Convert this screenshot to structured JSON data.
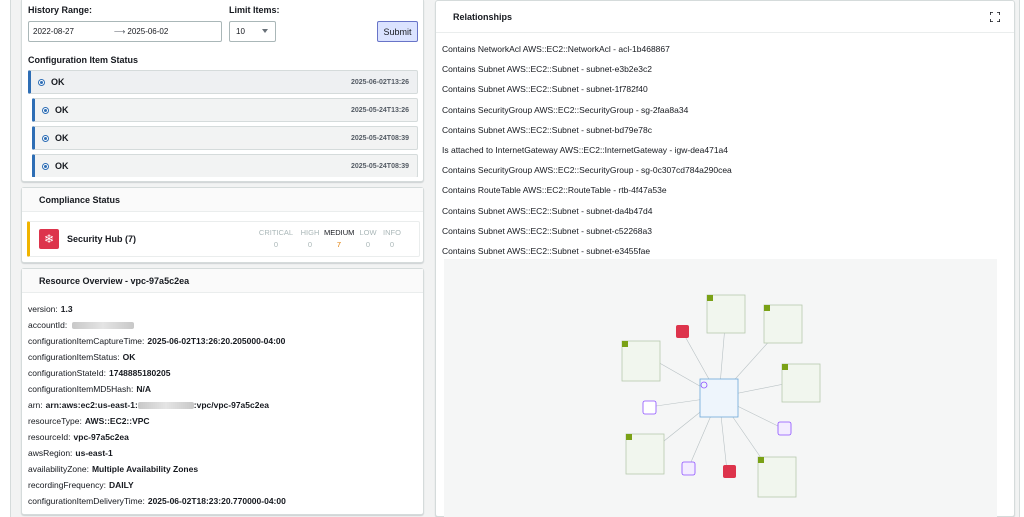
{
  "history": {
    "range_label": "History Range:",
    "start_date": "2022-08-27",
    "end_date": "2025-06-02",
    "limit_label": "Limit Items:",
    "limit_value": "10",
    "submit_label": "Submit"
  },
  "config_status": {
    "title": "Configuration Item Status",
    "items": [
      {
        "status": "OK",
        "time": "2025-06-02T13:26"
      },
      {
        "status": "OK",
        "time": "2025-05-24T13:26"
      },
      {
        "status": "OK",
        "time": "2025-05-24T08:39"
      },
      {
        "status": "OK",
        "time": "2025-05-24T08:39"
      }
    ]
  },
  "compliance": {
    "title": "Compliance Status",
    "hub_name": "Security Hub (7)",
    "severities": [
      {
        "label": "CRITICAL",
        "count": "0"
      },
      {
        "label": "HIGH",
        "count": "0"
      },
      {
        "label": "MEDIUM",
        "count": "7"
      },
      {
        "label": "LOW",
        "count": "0"
      },
      {
        "label": "INFO",
        "count": "0"
      }
    ],
    "accent_color": "#f0b400"
  },
  "overview": {
    "title": "Resource Overview - vpc-97a5c2ea",
    "rows": [
      {
        "k": "version:",
        "v": "1.3"
      },
      {
        "k": "accountId:",
        "v": ""
      },
      {
        "k": "configurationItemCaptureTime:",
        "v": "2025-06-02T13:26:20.205000-04:00"
      },
      {
        "k": "configurationItemStatus:",
        "v": "OK"
      },
      {
        "k": "configurationStateId:",
        "v": "1748885180205"
      },
      {
        "k": "configurationItemMD5Hash:",
        "v": "N/A"
      },
      {
        "k": "arn:",
        "v_pre": "arn:aws:ec2:us-east-1:",
        "v_post": ":vpc/vpc-97a5c2ea"
      },
      {
        "k": "resourceType:",
        "v": "AWS::EC2::VPC"
      },
      {
        "k": "resourceId:",
        "v": "vpc-97a5c2ea"
      },
      {
        "k": "awsRegion:",
        "v": "us-east-1"
      },
      {
        "k": "availabilityZone:",
        "v": "Multiple Availability Zones"
      },
      {
        "k": "recordingFrequency:",
        "v": "DAILY"
      },
      {
        "k": "configurationItemDeliveryTime:",
        "v": "2025-06-02T18:23:20.770000-04:00"
      }
    ]
  },
  "relationships": {
    "title": "Relationships",
    "items": [
      "Contains NetworkAcl AWS::EC2::NetworkAcl - acl-1b468867",
      "Contains Subnet AWS::EC2::Subnet - subnet-e3b2e3c2",
      "Contains Subnet AWS::EC2::Subnet - subnet-1f782f40",
      "Contains SecurityGroup AWS::EC2::SecurityGroup - sg-2faa8a34",
      "Contains Subnet AWS::EC2::Subnet - subnet-bd79e78c",
      "Is attached to InternetGateway AWS::EC2::InternetGateway - igw-dea471a4",
      "Contains SecurityGroup AWS::EC2::SecurityGroup - sg-0c307cd784a290cea",
      "Contains RouteTable AWS::EC2::RouteTable - rtb-4f47a53e",
      "Contains Subnet AWS::EC2::Subnet - subnet-da4b47d4",
      "Contains Subnet AWS::EC2::Subnet - subnet-c52268a3",
      "Contains Subnet AWS::EC2::Subnet - subnet-e3455fae"
    ]
  },
  "colors": {
    "accent_blue": "#2e6eb5",
    "subnet_green": "#7aa116",
    "sg_red": "#dd344c",
    "igw_purple": "#8c4fff"
  }
}
